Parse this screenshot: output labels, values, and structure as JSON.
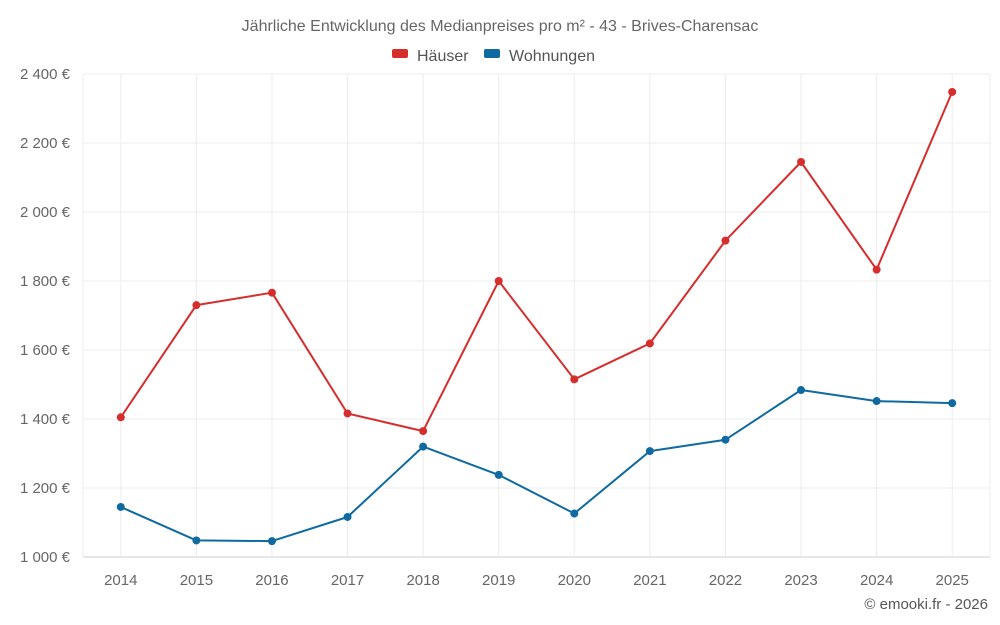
{
  "chart_data": {
    "type": "line",
    "title": "Jährliche Entwicklung des Medianpreises pro m² - 43 - Brives-Charensac",
    "categories": [
      "2014",
      "2015",
      "2016",
      "2017",
      "2018",
      "2019",
      "2020",
      "2021",
      "2022",
      "2023",
      "2024",
      "2025"
    ],
    "series": [
      {
        "name": "Häuser",
        "color": "#d62d2d",
        "values": [
          1405,
          1730,
          1766,
          1416,
          1365,
          1800,
          1515,
          1619,
          1917,
          2145,
          1833,
          2348
        ]
      },
      {
        "name": "Wohnungen",
        "color": "#0f6aa1",
        "values": [
          1145,
          1048,
          1046,
          1116,
          1320,
          1238,
          1126,
          1307,
          1340,
          1484,
          1452,
          1446
        ]
      }
    ],
    "ylim": [
      1000,
      2400
    ],
    "yticks": [
      1000,
      1200,
      1400,
      1600,
      1800,
      2000,
      2200,
      2400
    ],
    "ytick_labels": [
      "1 000 €",
      "1 200 €",
      "1 400 €",
      "1 600 €",
      "1 800 €",
      "2 000 €",
      "2 200 €",
      "2 400 €"
    ],
    "xlabel": "",
    "ylabel": "",
    "grid": true,
    "legend_position": "top-center"
  },
  "credit": "© emooki.fr - 2026"
}
